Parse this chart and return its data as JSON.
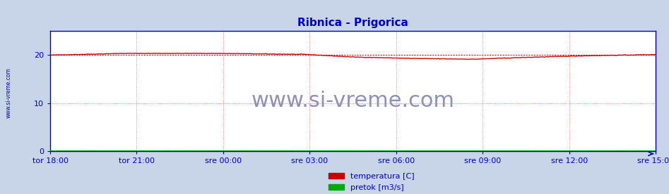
{
  "title": "Ribnica - Prigorica",
  "title_color": "#0000cc",
  "title_fontsize": 11,
  "bg_color": "#c8d4e8",
  "plot_bg_color": "#ffffff",
  "x_tick_labels": [
    "tor 18:00",
    "tor 21:00",
    "sre 00:00",
    "sre 03:00",
    "sre 06:00",
    "sre 09:00",
    "sre 12:00",
    "sre 15:00"
  ],
  "y_ticks": [
    0,
    10,
    20
  ],
  "ylim": [
    0,
    25
  ],
  "xlim": [
    0,
    504
  ],
  "x_tick_positions": [
    0,
    72,
    144,
    216,
    288,
    360,
    432,
    504
  ],
  "watermark": "www.si-vreme.com",
  "watermark_color": "#9090b8",
  "watermark_fontsize": 22,
  "legend_labels": [
    "temperatura [C]",
    "pretok [m3/s]"
  ],
  "legend_colors": [
    "#cc0000",
    "#00aa00"
  ],
  "temp_color": "#cc0000",
  "flow_color": "#00aa00",
  "avg_line_color": "#cc0000",
  "axis_color": "#0000cc",
  "tick_color": "#0000cc",
  "grid_color": "#dd6666",
  "sidebar_text": "www.si-vreme.com",
  "sidebar_color": "#0000cc"
}
